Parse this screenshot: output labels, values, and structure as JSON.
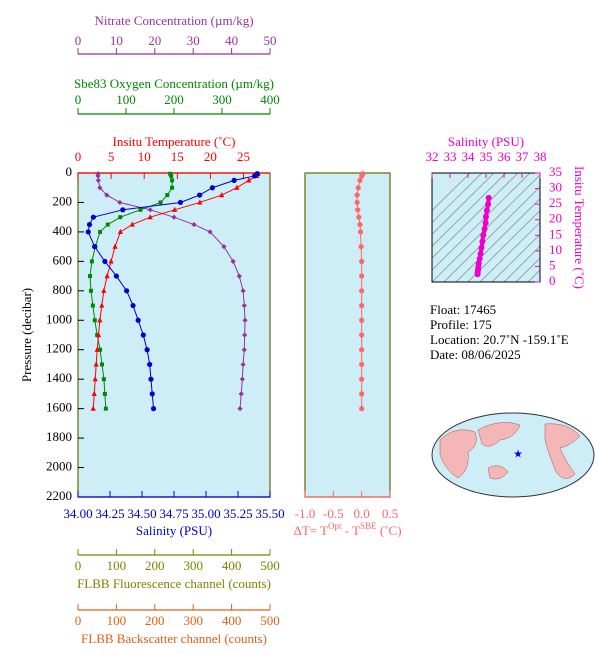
{
  "chart_data": [
    {
      "type": "profile",
      "ylabel": "Pressure (decibar)",
      "ylim": [
        0,
        2200
      ],
      "yticks": [
        0,
        200,
        400,
        600,
        800,
        1000,
        1200,
        1400,
        1600,
        1800,
        2000,
        2200
      ],
      "axes": [
        {
          "label": "Nitrate Concentration (µm/kg)",
          "color": "#993399",
          "xlim": [
            0,
            50
          ],
          "xticks": [
            0,
            10,
            20,
            30,
            40,
            50
          ]
        },
        {
          "label": "Sbe83 Oxygen Concentration (µm/kg)",
          "color": "#008800",
          "xlim": [
            0,
            400
          ],
          "xticks": [
            0,
            100,
            200,
            300,
            400
          ]
        },
        {
          "label": "Insitu Temperature (˚C)",
          "color": "#ff0000",
          "xlim": [
            0,
            29
          ],
          "xticks": [
            0,
            5,
            10,
            15,
            20,
            25
          ]
        },
        {
          "label": "Salinity (PSU)",
          "color": "#0000cc",
          "xlim": [
            34,
            35.5
          ],
          "xticks": [
            {
              "value": 34,
              "label": "34.00"
            },
            34.25,
            {
              "value": 34.5,
              "label": "34.50"
            },
            34.75,
            {
              "value": 35,
              "label": "35.00"
            },
            35.25,
            {
              "value": 35.5,
              "label": "35.50"
            }
          ]
        },
        {
          "label": "FLBB Fluorescence channel (counts)",
          "color": "#808000",
          "xlim": [
            0,
            500
          ],
          "xticks": [
            0,
            100,
            200,
            300,
            400,
            500
          ]
        },
        {
          "label": "FLBB Backscatter channel (counts)",
          "color": "#e06010",
          "xlim": [
            0,
            500
          ],
          "xticks": [
            0,
            100,
            200,
            300,
            400,
            500
          ]
        }
      ],
      "series": [
        {
          "axis": 0,
          "color": "#993399",
          "marker": "diamond",
          "y": [
            5,
            20,
            50,
            100,
            150,
            200,
            250,
            300,
            350,
            400,
            500,
            600,
            700,
            800,
            900,
            1000,
            1100,
            1200,
            1300,
            1400,
            1500,
            1600
          ],
          "values": [
            5.2,
            5.2,
            5.3,
            5.7,
            7.5,
            10.9,
            18.8,
            25.0,
            30.2,
            34.4,
            38.0,
            40.4,
            42.0,
            43.0,
            43.3,
            43.5,
            43.4,
            43.3,
            43.0,
            42.8,
            42.5,
            42.2
          ]
        },
        {
          "axis": 1,
          "color": "#008800",
          "marker": "square",
          "y": [
            5,
            20,
            50,
            100,
            150,
            200,
            250,
            300,
            350,
            400,
            500,
            600,
            700,
            800,
            900,
            1000,
            1100,
            1200,
            1300,
            1400,
            1500,
            1600
          ],
          "values": [
            192,
            194,
            196,
            196,
            186,
            172,
            130,
            88,
            62,
            46,
            36,
            29,
            25,
            27,
            31,
            35,
            40,
            46,
            50,
            54,
            56,
            58
          ]
        },
        {
          "axis": 2,
          "color": "#ff0000",
          "marker": "triangle",
          "y": [
            5,
            20,
            50,
            100,
            150,
            200,
            250,
            300,
            350,
            400,
            500,
            600,
            700,
            800,
            900,
            1000,
            1100,
            1200,
            1300,
            1400,
            1500,
            1600
          ],
          "values": [
            27.2,
            27.0,
            25.8,
            24.0,
            21.7,
            18.4,
            14.6,
            10.9,
            8.2,
            6.4,
            5.6,
            5.0,
            4.4,
            3.9,
            3.6,
            3.3,
            3.1,
            2.9,
            2.75,
            2.6,
            2.45,
            2.3
          ]
        },
        {
          "axis": 3,
          "color": "#0000cc",
          "marker": "circle",
          "y": [
            5,
            20,
            50,
            100,
            150,
            200,
            250,
            300,
            350,
            400,
            500,
            600,
            700,
            800,
            900,
            1000,
            1100,
            1200,
            1300,
            1400,
            1500,
            1600
          ],
          "values": [
            35.4,
            35.38,
            35.22,
            35.05,
            34.95,
            34.8,
            34.35,
            34.12,
            34.09,
            34.08,
            34.13,
            34.21,
            34.3,
            34.38,
            34.43,
            34.47,
            34.51,
            34.54,
            34.56,
            34.57,
            34.58,
            34.59
          ]
        }
      ]
    },
    {
      "type": "profile",
      "ylim": [
        0,
        2200
      ],
      "axes": [
        {
          "label_parts": [
            "ΔT= T",
            "Opt",
            " - T",
            "SBE",
            " (˚C)"
          ],
          "color": "#ff6666",
          "xlim": [
            -1,
            0.5
          ],
          "xticks": [
            {
              "value": -1,
              "label": "-1.0"
            },
            -0.5,
            {
              "value": 0,
              "label": "0.0"
            },
            0.5
          ]
        }
      ],
      "series": [
        {
          "axis": 0,
          "color": "#ff6666",
          "marker": "circle",
          "y": [
            5,
            20,
            50,
            100,
            150,
            200,
            250,
            300,
            350,
            400,
            500,
            600,
            700,
            800,
            900,
            1000,
            1100,
            1200,
            1300,
            1400,
            1500,
            1600
          ],
          "values": [
            0.02,
            0.0,
            -0.03,
            -0.06,
            -0.08,
            -0.08,
            -0.07,
            -0.05,
            -0.03,
            -0.02,
            -0.01,
            0.0,
            0.0,
            0.0,
            0.0,
            0.0,
            0.0,
            0.0,
            0.0,
            0.0,
            0.0,
            0.0
          ]
        }
      ]
    },
    {
      "type": "ts",
      "xlabel": "Salinity (PSU)",
      "ylabel": "Insitu Temperature (˚C)",
      "color": "#ee00cc",
      "xlim": [
        32,
        38
      ],
      "xticks": [
        32,
        33,
        34,
        35,
        36,
        37,
        38
      ],
      "ylim": [
        0,
        35
      ],
      "yticks": [
        0,
        5,
        10,
        15,
        20,
        25,
        30,
        35
      ],
      "x": [
        35.15,
        35.12,
        35.05,
        35.0,
        34.98,
        34.92,
        34.85,
        34.8,
        34.75,
        34.7,
        34.65,
        34.6,
        34.58,
        34.56,
        34.55,
        34.54,
        34.53
      ],
      "values": [
        27,
        25,
        23,
        21,
        19,
        17,
        15,
        13,
        11,
        9,
        7.5,
        6,
        5,
        4.2,
        3.6,
        3.0,
        2.5
      ]
    }
  ],
  "info": [
    "Float:  17465",
    "Profile:  175",
    "Location:  20.7˚N  -159.1˚E",
    "Date:  08/06/2025"
  ]
}
